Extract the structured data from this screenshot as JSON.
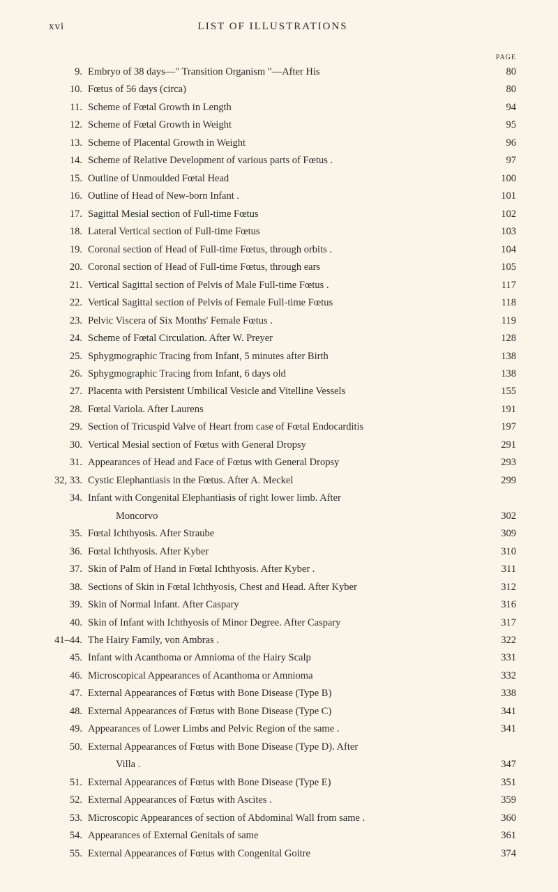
{
  "header": {
    "roman": "xvi",
    "title": "LIST OF ILLUSTRATIONS",
    "pageLabel": "PAGE"
  },
  "colors": {
    "background": "#f9f5e8",
    "text": "#2a2a2a"
  },
  "typography": {
    "bodyFontSize": 14.5,
    "headerFontSize": 15,
    "pageLabelFontSize": 10,
    "lineHeight": 1.55
  },
  "entries": [
    {
      "num": "9.",
      "text": "Embryo of 38 days—\" Transition Organism \"—After His",
      "page": "80"
    },
    {
      "num": "10.",
      "text": "Fœtus of 56 days (circa)",
      "page": "80"
    },
    {
      "num": "11.",
      "text": "Scheme of Fœtal Growth in Length",
      "page": "94"
    },
    {
      "num": "12.",
      "text": "Scheme of Fœtal Growth in Weight",
      "page": "95"
    },
    {
      "num": "13.",
      "text": "Scheme of Placental Growth in Weight",
      "page": "96"
    },
    {
      "num": "14.",
      "text": "Scheme of Relative Development of various parts of Fœtus .",
      "page": "97"
    },
    {
      "num": "15.",
      "text": "Outline of Unmoulded Fœtal Head",
      "page": "100"
    },
    {
      "num": "16.",
      "text": "Outline of Head of New-born Infant .",
      "page": "101"
    },
    {
      "num": "17.",
      "text": "Sagittal Mesial section of Full-time Fœtus",
      "page": "102"
    },
    {
      "num": "18.",
      "text": "Lateral Vertical section of Full-time Fœtus",
      "page": "103"
    },
    {
      "num": "19.",
      "text": "Coronal section of Head of Full-time Fœtus, through orbits .",
      "page": "104"
    },
    {
      "num": "20.",
      "text": "Coronal section of Head of Full-time Fœtus, through ears",
      "page": "105"
    },
    {
      "num": "21.",
      "text": "Vertical Sagittal section of Pelvis of Male Full-time Fœtus .",
      "page": "117"
    },
    {
      "num": "22.",
      "text": "Vertical Sagittal section of Pelvis of Female Full-time Fœtus",
      "page": "118"
    },
    {
      "num": "23.",
      "text": "Pelvic Viscera of Six Months' Female Fœtus .",
      "page": "119"
    },
    {
      "num": "24.",
      "text": "Scheme of Fœtal Circulation.   After W. Preyer",
      "page": "128"
    },
    {
      "num": "25.",
      "text": "Sphygmographic Tracing from Infant, 5 minutes after Birth",
      "page": "138"
    },
    {
      "num": "26.",
      "text": "Sphygmographic Tracing from Infant, 6 days old",
      "page": "138"
    },
    {
      "num": "27.",
      "text": "Placenta with Persistent Umbilical Vesicle and Vitelline Vessels",
      "page": "155"
    },
    {
      "num": "28.",
      "text": "Fœtal Variola.   After Laurens",
      "page": "191"
    },
    {
      "num": "29.",
      "text": "Section of Tricuspid Valve of Heart from case of Fœtal Endocarditis",
      "page": "197"
    },
    {
      "num": "30.",
      "text": "Vertical Mesial section of Fœtus with General Dropsy",
      "page": "291"
    },
    {
      "num": "31.",
      "text": "Appearances of Head and Face of Fœtus with General Dropsy",
      "page": "293"
    },
    {
      "num": "32, 33.",
      "text": "Cystic Elephantiasis in the Fœtus.   After A. Meckel",
      "page": "299"
    },
    {
      "num": "34.",
      "text": "Infant with Congenital Elephantiasis of right lower limb.   After",
      "page": ""
    },
    {
      "num": "",
      "text": "Moncorvo",
      "page": "302",
      "continuation": true
    },
    {
      "num": "35.",
      "text": "Fœtal Ichthyosis.   After Straube",
      "page": "309"
    },
    {
      "num": "36.",
      "text": "Fœtal Ichthyosis.   After Kyber",
      "page": "310"
    },
    {
      "num": "37.",
      "text": "Skin of Palm of Hand in Fœtal Ichthyosis.   After Kyber   .",
      "page": "311"
    },
    {
      "num": "38.",
      "text": "Sections of Skin in Fœtal Ichthyosis, Chest and Head.   After Kyber",
      "page": "312"
    },
    {
      "num": "39.",
      "text": "Skin of Normal Infant.   After Caspary",
      "page": "316"
    },
    {
      "num": "40.",
      "text": "Skin of Infant with Ichthyosis of Minor Degree.   After Caspary",
      "page": "317"
    },
    {
      "num": "41–44.",
      "text": "The Hairy Family, von Ambras   .",
      "page": "322"
    },
    {
      "num": "45.",
      "text": "Infant with Acanthoma or Amnioma of the Hairy Scalp",
      "page": "331"
    },
    {
      "num": "46.",
      "text": "Microscopical Appearances of Acanthoma or Amnioma",
      "page": "332"
    },
    {
      "num": "47.",
      "text": "External Appearances of Fœtus with Bone Disease (Type B)",
      "page": "338"
    },
    {
      "num": "48.",
      "text": "External Appearances of Fœtus with Bone Disease (Type C)",
      "page": "341"
    },
    {
      "num": "49.",
      "text": "Appearances of Lower Limbs and Pelvic Region of the same .",
      "page": "341"
    },
    {
      "num": "50.",
      "text": "External Appearances of Fœtus with Bone Disease (Type D).   After",
      "page": ""
    },
    {
      "num": "",
      "text": "Villa .",
      "page": "347",
      "continuation": true
    },
    {
      "num": "51.",
      "text": "External Appearances of Fœtus with Bone Disease (Type E)",
      "page": "351"
    },
    {
      "num": "52.",
      "text": "External Appearances of Fœtus with Ascites .",
      "page": "359"
    },
    {
      "num": "53.",
      "text": "Microscopic Appearances of section of Abdominal Wall from same .",
      "page": "360"
    },
    {
      "num": "54.",
      "text": "Appearances of External Genitals of same",
      "page": "361"
    },
    {
      "num": "55.",
      "text": "External Appearances of Fœtus with Congenital Goitre",
      "page": "374"
    }
  ]
}
